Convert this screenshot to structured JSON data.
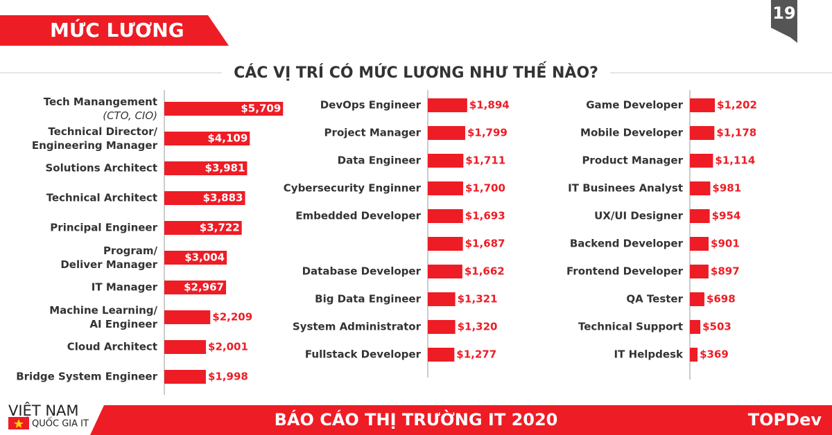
{
  "header": {
    "title": "MỨC LƯƠNG",
    "page": "19",
    "subtitle": "CÁC VỊ TRÍ CÓ MỨC LƯƠNG NHƯ THẾ NÀO?"
  },
  "footer": {
    "country": "VIỆT NAM",
    "tagline": "QUỐC GIA IT",
    "report": "BÁO CÁO THỊ TRƯỜNG IT 2020",
    "brand": "TOPDev"
  },
  "chart_data": [
    {
      "type": "bar",
      "orientation": "horizontal",
      "color": "#ee1c25",
      "xlim": [
        0,
        10000
      ],
      "categories": [
        "Tech Manangement\n(CTO, CIO)",
        "Technical Director/\nEngineering Manager",
        "Solutions Architect",
        "Technical Architect",
        "Principal Engineer",
        "Program/\nDeliver Manager",
        "IT Manager",
        "Machine Learning/\nAI Engineer",
        "Cloud Architect",
        "Bridge System Engineer"
      ],
      "values": [
        5709,
        4109,
        3981,
        3883,
        3722,
        3004,
        2967,
        2209,
        2001,
        1998
      ],
      "value_labels": [
        "$5,709",
        "$4,109",
        "$3,981",
        "$3,883",
        "$3,722",
        "$3,004",
        "$2,967",
        "$2,209",
        "$2,001",
        "$1,998"
      ]
    },
    {
      "type": "bar",
      "orientation": "horizontal",
      "color": "#ee1c25",
      "xlim": [
        0,
        10000
      ],
      "categories": [
        "DevOps Engineer",
        "Project Manager",
        "Data Engineer",
        "Cybersecurity Enginner",
        "Embedded Developer",
        null,
        "Database Developer",
        "Big Data Engineer",
        "System Administrator",
        "Fullstack Developer"
      ],
      "values": [
        1894,
        1799,
        1711,
        1700,
        1693,
        1687,
        1662,
        1321,
        1320,
        1277
      ],
      "value_labels": [
        "$1,894",
        "$1,799",
        "$1,711",
        "$1,700",
        "$1,693",
        "$1,687",
        "$1,662",
        "$1,321",
        "$1,320",
        "$1,277"
      ]
    },
    {
      "type": "bar",
      "orientation": "horizontal",
      "color": "#ee1c25",
      "xlim": [
        0,
        10000
      ],
      "categories": [
        "Game Developer",
        "Mobile Developer",
        "Product Manager",
        "IT Businees Analyst",
        "UX/UI Designer",
        "Backend Developer",
        "Frontend Developer",
        "QA Tester",
        "Technical Support",
        "IT Helpdesk"
      ],
      "values": [
        1202,
        1178,
        1114,
        981,
        954,
        901,
        897,
        698,
        503,
        369
      ],
      "value_labels": [
        "$1,202",
        "$1,178",
        "$1,114",
        "$981",
        "$954",
        "$901",
        "$897",
        "$698",
        "$503",
        "$369"
      ]
    }
  ]
}
